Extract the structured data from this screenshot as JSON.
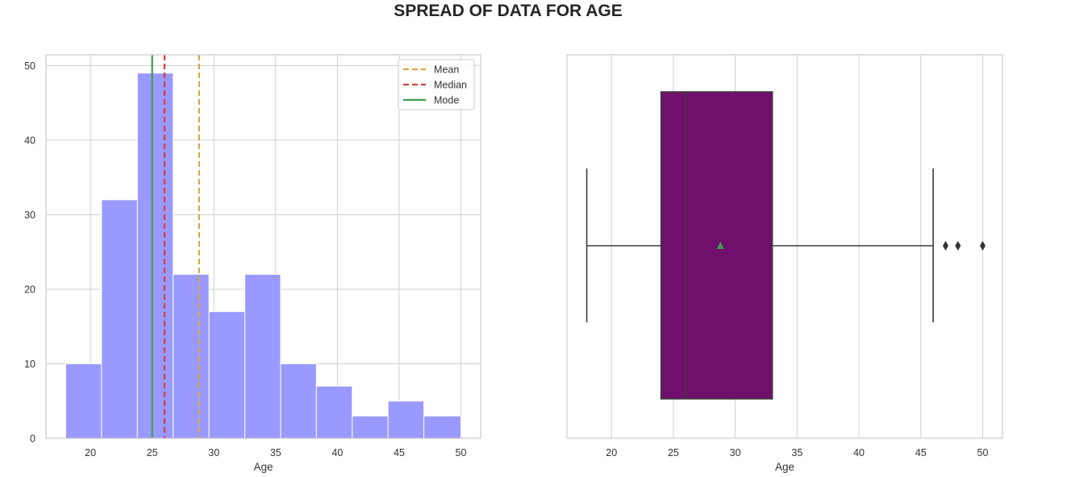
{
  "title": "SPREAD OF DATA FOR AGE",
  "colors": {
    "hist_fill": "#9999ff",
    "hist_edge": "#8f8ff5",
    "mean": "#d4a94a",
    "median": "#d43f3a",
    "mode": "#3e9e4c",
    "box_fill": "#700f6c",
    "box_edge": "#3d3d3d",
    "mean_marker": "#3e9e4c",
    "grid": "#d0d0d0",
    "axis_frame": "#cccccc"
  },
  "chart_data": [
    {
      "type": "bar",
      "subtype": "histogram",
      "xlabel": "Age",
      "ylabel": "",
      "xlim": [
        16.4,
        51.6
      ],
      "ylim": [
        0,
        51.45
      ],
      "xticks": [
        20,
        25,
        30,
        35,
        40,
        45,
        50
      ],
      "yticks": [
        0,
        10,
        20,
        30,
        40,
        50
      ],
      "bin_edges": [
        18,
        20.9,
        23.8,
        26.7,
        29.6,
        32.5,
        35.4,
        38.3,
        41.2,
        44.1,
        47,
        50
      ],
      "counts": [
        10,
        32,
        49,
        22,
        17,
        22,
        10,
        7,
        3,
        5,
        3
      ],
      "lines": [
        {
          "name": "Mean",
          "x": 28.8,
          "style": "dashed"
        },
        {
          "name": "Median",
          "x": 26,
          "style": "dashed"
        },
        {
          "name": "Mode",
          "x": 25,
          "style": "solid"
        }
      ],
      "grid": true,
      "legend": {
        "position": "top-right",
        "entries": [
          "Mean",
          "Median",
          "Mode"
        ]
      }
    },
    {
      "type": "boxplot",
      "xlabel": "Age",
      "xlim": [
        16.4,
        51.6
      ],
      "xticks": [
        20,
        25,
        30,
        35,
        40,
        45,
        50
      ],
      "whisker_low": 18,
      "q1": 24,
      "median": 26,
      "q3": 33,
      "whisker_high": 46,
      "mean": 28.8,
      "outliers": [
        47,
        48,
        50
      ],
      "grid": true
    }
  ]
}
